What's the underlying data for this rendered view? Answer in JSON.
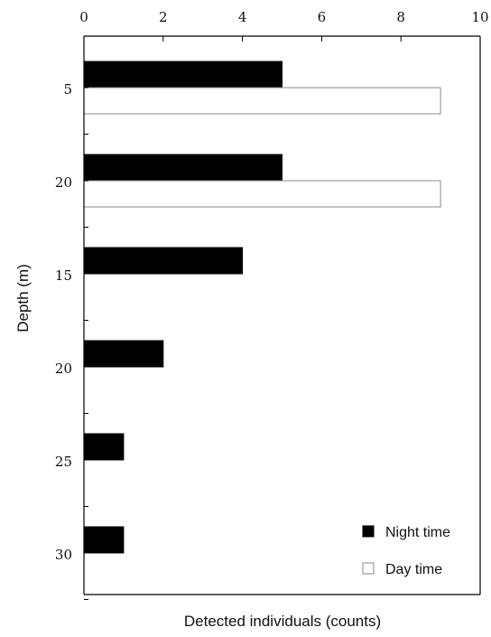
{
  "chart_data": {
    "type": "bar",
    "orientation": "horizontal",
    "categories": [
      "5",
      "20",
      "15",
      "20",
      "25",
      "30"
    ],
    "series": [
      {
        "name": "Night time",
        "values": [
          5,
          5,
          4,
          2,
          1,
          1
        ],
        "color": "#000000"
      },
      {
        "name": "Day time",
        "values": [
          9,
          9,
          0,
          0,
          0,
          0
        ],
        "color": "#ffffff"
      }
    ],
    "xlabel": "Detected individuals (counts)",
    "ylabel": "Depth (m)",
    "xlim": [
      0,
      10
    ],
    "xticks": [
      "0",
      "2",
      "4",
      "6",
      "8",
      "10"
    ],
    "x_axis_position": "top",
    "grid": false,
    "legend_position": "bottom-right"
  }
}
